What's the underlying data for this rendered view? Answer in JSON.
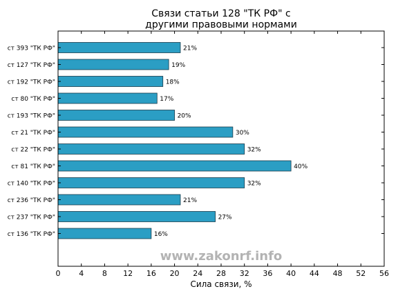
{
  "chart_data": {
    "type": "bar",
    "orientation": "horizontal",
    "title": [
      "Связи статьи 128 \"ТК РФ\" с",
      "другими правовыми нормами"
    ],
    "xlabel": "Сила связи, %",
    "ylabel": "",
    "xlim": [
      0,
      56
    ],
    "xticks": [
      0,
      4,
      8,
      12,
      16,
      20,
      24,
      28,
      32,
      36,
      40,
      44,
      48,
      52,
      56
    ],
    "categories": [
      "ст 393 \"ТК РФ\"",
      "ст 127 \"ТК РФ\"",
      "ст 192 \"ТК РФ\"",
      "ст 80 \"ТК РФ\"",
      "ст 193 \"ТК РФ\"",
      "ст 21 \"ТК РФ\"",
      "ст 22 \"ТК РФ\"",
      "ст 81 \"ТК РФ\"",
      "ст 140 \"ТК РФ\"",
      "ст 236 \"ТК РФ\"",
      "ст 237 \"ТК РФ\"",
      "ст 136 \"ТК РФ\""
    ],
    "values": [
      21,
      19,
      18,
      17,
      20,
      30,
      32,
      40,
      32,
      21,
      27,
      16
    ],
    "value_labels": [
      "21%",
      "19%",
      "18%",
      "17%",
      "20%",
      "30%",
      "32%",
      "40%",
      "32%",
      "21%",
      "27%",
      "16%"
    ],
    "bar_color": "#2b9ec4",
    "bar_edge_color": "#1a3a4a",
    "grid": false,
    "legend": "none"
  },
  "watermark": "www.zakonrf.info"
}
